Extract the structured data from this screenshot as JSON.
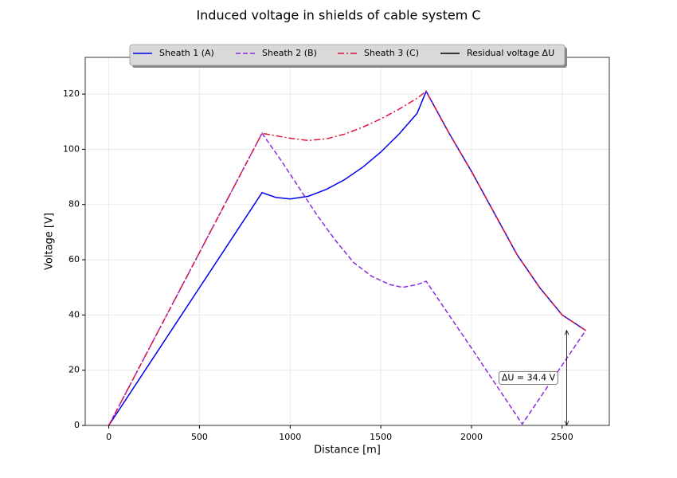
{
  "chart_data": {
    "type": "line",
    "title": "Induced voltage in shields of cable system C",
    "x_label": "Distance [m]",
    "y_label": "Voltage [V]",
    "xlim": [
      -130,
      2760
    ],
    "ylim": [
      0,
      133.3
    ],
    "xticks": [
      0,
      500,
      1000,
      1500,
      2000,
      2500
    ],
    "yticks": [
      0,
      20,
      40,
      60,
      80,
      100,
      120
    ],
    "grid": true,
    "legend": "upper center",
    "series": [
      {
        "name": "Sheath 1 (A)",
        "color": "#0000ee",
        "dash": "solid",
        "x": [
          0,
          845,
          920,
          1000,
          1100,
          1200,
          1300,
          1400,
          1500,
          1600,
          1700,
          1750,
          1875,
          2000,
          2125,
          2250,
          2375,
          2500,
          2630
        ],
        "values": [
          0,
          84.3,
          82.6,
          82,
          83,
          85.5,
          89,
          93.5,
          99,
          105.5,
          113,
          121,
          106,
          92,
          77,
          62,
          50,
          40,
          34.4
        ]
      },
      {
        "name": "Sheath 2 (B)",
        "color": "#8a2be2",
        "dash": "dashed",
        "x": [
          0,
          845,
          950,
          1050,
          1150,
          1250,
          1350,
          1450,
          1550,
          1620,
          1700,
          1750,
          2000,
          2280,
          2630
        ],
        "values": [
          0,
          105.8,
          96,
          86,
          76,
          67,
          59,
          54,
          51,
          50,
          51,
          52.2,
          28,
          0.5,
          34.4
        ]
      },
      {
        "name": "Sheath 3 (C)",
        "color": "#dc143c",
        "dash": "dashdot",
        "x": [
          0,
          845,
          1000,
          1100,
          1200,
          1300,
          1400,
          1500,
          1600,
          1700,
          1750,
          1875,
          2000,
          2125,
          2250,
          2375,
          2500,
          2630
        ],
        "values": [
          0,
          105.8,
          104,
          103.2,
          103.8,
          105.5,
          108,
          111,
          114.5,
          118.5,
          121,
          106,
          92,
          77,
          62,
          50,
          40,
          34.4
        ]
      },
      {
        "name": "Residual voltage ΔU",
        "color": "#000000",
        "dash": "arrow",
        "x": [
          2525,
          2525
        ],
        "values": [
          0,
          34.4
        ]
      }
    ],
    "annotation": "ΔU = 34.4 V"
  }
}
